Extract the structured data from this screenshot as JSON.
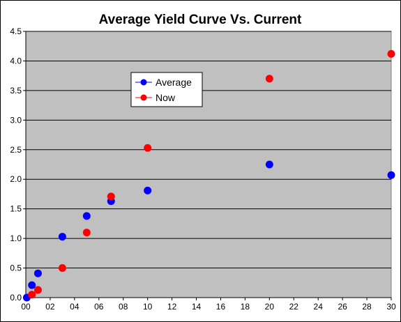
{
  "colors": {
    "plot_background": "#c0c0c0",
    "gridline": "#000000",
    "average": "#0000ff",
    "now": "#ff0000"
  },
  "chart_data": {
    "type": "scatter",
    "title": "Average Yield Curve Vs. Current",
    "xlabel": "",
    "ylabel": "",
    "xlim": [
      0,
      30
    ],
    "ylim": [
      0,
      4.5
    ],
    "x_ticks": [
      "00",
      "02",
      "04",
      "06",
      "08",
      "10",
      "12",
      "14",
      "16",
      "18",
      "20",
      "22",
      "24",
      "26",
      "28",
      "30"
    ],
    "y_ticks": [
      "0.0",
      "0.5",
      "1.0",
      "1.5",
      "2.0",
      "2.5",
      "3.0",
      "3.5",
      "4.0",
      "4.5"
    ],
    "grid": "horizontal",
    "legend_position": "upper-center",
    "series": [
      {
        "name": "Average",
        "color": "#0000ff",
        "points": [
          {
            "x": 0.08,
            "y": 0.0
          },
          {
            "x": 0.5,
            "y": 0.21
          },
          {
            "x": 1,
            "y": 0.41
          },
          {
            "x": 3,
            "y": 1.03
          },
          {
            "x": 5,
            "y": 1.38
          },
          {
            "x": 7,
            "y": 1.63
          },
          {
            "x": 10,
            "y": 1.81
          },
          {
            "x": 20,
            "y": 2.25
          },
          {
            "x": 30,
            "y": 2.07
          }
        ]
      },
      {
        "name": "Now",
        "color": "#ff0000",
        "points": [
          {
            "x": 0.5,
            "y": 0.05
          },
          {
            "x": 1,
            "y": 0.13
          },
          {
            "x": 3,
            "y": 0.5
          },
          {
            "x": 5,
            "y": 1.1
          },
          {
            "x": 7,
            "y": 1.71
          },
          {
            "x": 10,
            "y": 2.53
          },
          {
            "x": 20,
            "y": 3.7
          },
          {
            "x": 30,
            "y": 4.12
          }
        ]
      }
    ]
  }
}
